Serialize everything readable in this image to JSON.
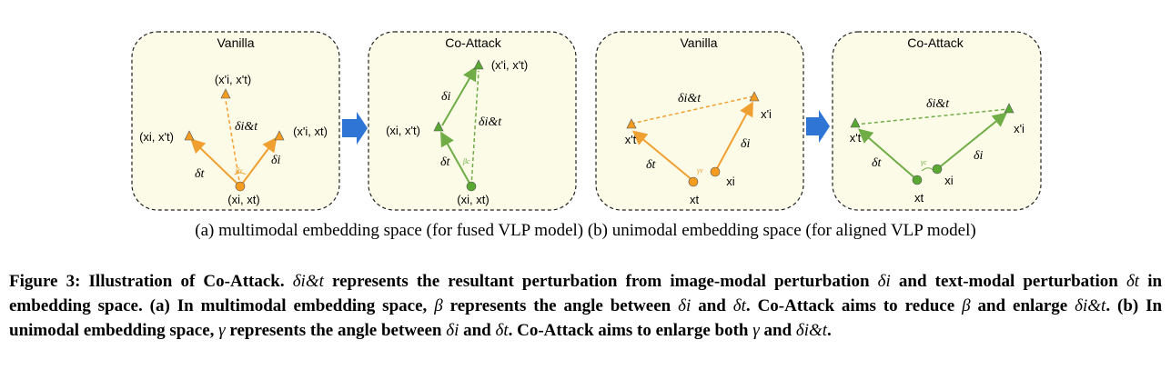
{
  "panels": [
    {
      "title": "Vanilla"
    },
    {
      "title": "Co-Attack"
    },
    {
      "title": "Vanilla"
    },
    {
      "title": "Co-Attack"
    }
  ],
  "labels": {
    "p1_top": "(x'i, x't)",
    "p1_left": "(xi, x't)",
    "p1_right": "(x'i, xt)",
    "p1_origin": "(xi, xt)",
    "p1_delta_it": "δi&t",
    "p1_delta_t": "δt",
    "p1_delta_i": "δi",
    "p1_beta": "βv",
    "p2_top": "(x'i, x't)",
    "p2_left": "(xi, x't)",
    "p2_origin": "(xi, xt)",
    "p2_delta_i": "δi",
    "p2_delta_it": "δi&t",
    "p2_delta_t": "δt",
    "p2_beta": "βc",
    "p3_left": "x't",
    "p3_right": "x'i",
    "p3_xt": "xt",
    "p3_xi": "xi",
    "p3_delta_it": "δi&t",
    "p3_delta_t": "δt",
    "p3_delta_i": "δi",
    "p3_gamma": "γv",
    "p4_left": "x't",
    "p4_right": "x'i",
    "p4_xt": "xt",
    "p4_xi": "xi",
    "p4_delta_it": "δi&t",
    "p4_delta_t": "δt",
    "p4_delta_i": "δi",
    "p4_gamma": "γc"
  },
  "colors": {
    "panel_bg": "#fbfbe7",
    "orange": "#f0a030",
    "orange_fill": "#f39c1f",
    "green": "#70ad47",
    "green_fill": "#58a832",
    "arrow_blue": "#2e75d6"
  },
  "subcaption": "(a) multimodal embedding space (for fused VLP model) (b) unimodal embedding space (for aligned VLP model)",
  "caption": {
    "lead": "Figure 3: Illustration of Co-Attack.",
    "part1_sym": "δi&t",
    "part1": "represents the resultant perturbation from image-modal perturbation",
    "part1_sym2": "δi",
    "part1b": "and text-modal perturbation",
    "part1_sym3": "δt",
    "part1c": "in embedding space. (a) In multimodal embedding space,",
    "beta": "β",
    "part2": "represents the angle between",
    "part2_sym": "δi",
    "and": "and",
    "part2_sym2": "δt",
    "part2b": ". Co-Attack aims to reduce",
    "part2_beta": "β",
    "part2c": "and enlarge",
    "part2_sym3": "δi&t",
    "part3": ". (b) In unimodal embedding space,",
    "gamma": "γ",
    "part3b": "represents the angle between",
    "part3_sym": "δi",
    "part3_sym2": "δt",
    "part3c": ". Co-Attack aims to enlarge both",
    "part3_gamma": "γ",
    "part3d": "and",
    "part3_sym3": "δi&t",
    "end": "."
  }
}
